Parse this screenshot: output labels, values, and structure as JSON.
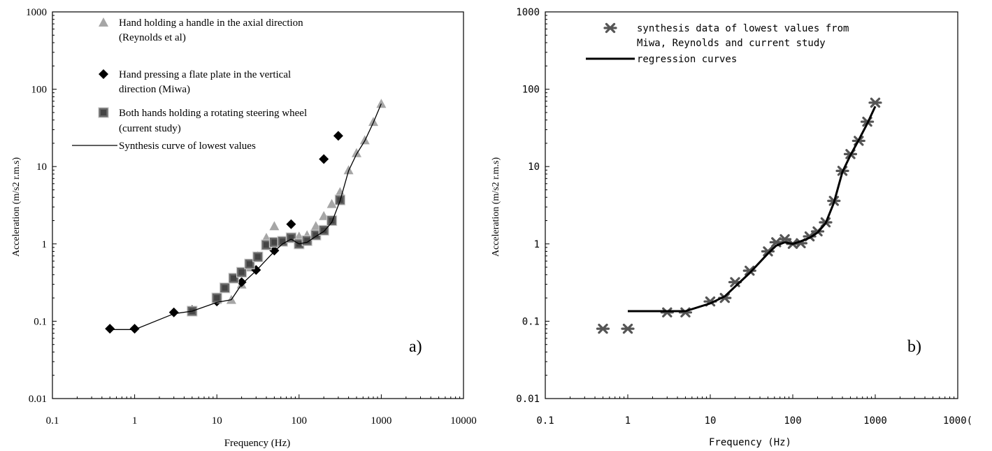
{
  "chart_data": [
    {
      "type": "scatter",
      "panel_label": "a)",
      "xlabel": "Frequency (Hz)",
      "ylabel": "Acceleration (m/s2 r.m.s)",
      "xscale": "log",
      "yscale": "log",
      "xlim": [
        0.1,
        10000
      ],
      "ylim": [
        0.01,
        1000
      ],
      "x_ticks": [
        "0.1",
        "1",
        "10",
        "100",
        "1000",
        "10000"
      ],
      "y_ticks": [
        "0.01",
        "0.1",
        "1",
        "10",
        "100",
        "1000"
      ],
      "legend_position": "top-left",
      "series": [
        {
          "name": "Hand holding a handle in the axial direction (Reynolds et al)",
          "legend_lines": [
            "Hand holding a handle in the axial direction",
            "(Reynolds et al)"
          ],
          "marker": "triangle",
          "color": "#a6a6a6",
          "x": [
            5,
            10,
            15,
            20,
            25,
            31.5,
            40,
            50,
            63,
            80,
            100,
            125,
            160,
            200,
            250,
            315,
            400,
            500,
            630,
            800,
            1000
          ],
          "y": [
            0.14,
            0.19,
            0.19,
            0.3,
            0.5,
            0.7,
            1.2,
            1.7,
            1.1,
            1.2,
            1.25,
            1.3,
            1.7,
            2.3,
            3.3,
            4.7,
            9,
            15,
            22,
            38,
            65
          ]
        },
        {
          "name": "Hand pressing a flate plate in the vertical direction (Miwa)",
          "legend_lines": [
            "Hand pressing a flate plate in the vertical",
            "direction (Miwa)"
          ],
          "marker": "diamond",
          "color": "#000000",
          "x": [
            0.5,
            1,
            3,
            5,
            10,
            20,
            30,
            50,
            80,
            200,
            300
          ],
          "y": [
            0.08,
            0.08,
            0.13,
            0.14,
            0.18,
            0.32,
            0.46,
            0.82,
            1.8,
            12.5,
            25
          ]
        },
        {
          "name": "Both hands holding a rotating steering wheel (current study)",
          "legend_lines": [
            "Both hands holding a rotating steering wheel",
            "(current study)"
          ],
          "marker": "square",
          "color": "#666666",
          "x": [
            5,
            10,
            12.5,
            16,
            20,
            25,
            31.5,
            40,
            50,
            63,
            80,
            100,
            125,
            160,
            200,
            250,
            315
          ],
          "y": [
            0.135,
            0.2,
            0.27,
            0.36,
            0.43,
            0.55,
            0.68,
            0.97,
            1.05,
            1.08,
            1.2,
            1.0,
            1.1,
            1.3,
            1.5,
            2.0,
            3.7
          ]
        },
        {
          "name": "Synthesis curve of lowest values",
          "legend_lines": [
            "Synthesis curve of lowest values"
          ],
          "marker": "line",
          "color": "#000000",
          "x": [
            0.5,
            1,
            3,
            5,
            10,
            15,
            20,
            30,
            50,
            63,
            80,
            100,
            125,
            160,
            200,
            250,
            315,
            400,
            500,
            630,
            800,
            1000
          ],
          "y": [
            0.078,
            0.078,
            0.125,
            0.135,
            0.175,
            0.19,
            0.3,
            0.45,
            0.8,
            1.0,
            1.15,
            1.0,
            1.05,
            1.25,
            1.45,
            1.9,
            3.6,
            8.8,
            14.5,
            21.5,
            37,
            65
          ]
        }
      ]
    },
    {
      "type": "scatter",
      "panel_label": "b)",
      "xlabel": "Frequency (Hz)",
      "ylabel": "Acceleration (m/s2 r.m.s)",
      "xscale": "log",
      "yscale": "log",
      "xlim": [
        0.1,
        10000
      ],
      "ylim": [
        0.01,
        1000
      ],
      "x_ticks": [
        "0.1",
        "1",
        "10",
        "100",
        "1000",
        "1000("
      ],
      "y_ticks": [
        "0.01",
        "0.1",
        "1",
        "10",
        "100",
        "1000"
      ],
      "legend_position": "top-left",
      "series": [
        {
          "name": "synthesis data of lowest values from Miwa, Reynolds and current study",
          "legend_lines": [
            "synthesis data of lowest values from",
            "Miwa, Reynolds and current study"
          ],
          "marker": "asterisk",
          "color": "#555555",
          "x": [
            0.5,
            1,
            3,
            5,
            10,
            15,
            20,
            30,
            50,
            63,
            80,
            100,
            125,
            160,
            200,
            250,
            315,
            400,
            500,
            630,
            800,
            1000
          ],
          "y": [
            0.08,
            0.08,
            0.13,
            0.13,
            0.18,
            0.2,
            0.32,
            0.45,
            0.8,
            1.05,
            1.15,
            1.0,
            1.02,
            1.25,
            1.45,
            1.9,
            3.6,
            8.8,
            14.5,
            21.5,
            38,
            67
          ]
        },
        {
          "name": "regression curves",
          "legend_lines": [
            "regression curves"
          ],
          "marker": "line",
          "color": "#000000",
          "x": [
            1,
            5,
            10,
            15,
            20,
            30,
            50,
            63,
            80,
            100,
            125,
            160,
            200,
            250,
            315,
            400,
            500,
            630,
            800,
            1000
          ],
          "y": [
            0.135,
            0.135,
            0.17,
            0.21,
            0.28,
            0.42,
            0.75,
            0.95,
            1.05,
            1.0,
            1.08,
            1.2,
            1.4,
            1.85,
            3.4,
            8.5,
            14,
            22,
            36,
            60
          ]
        }
      ]
    }
  ]
}
